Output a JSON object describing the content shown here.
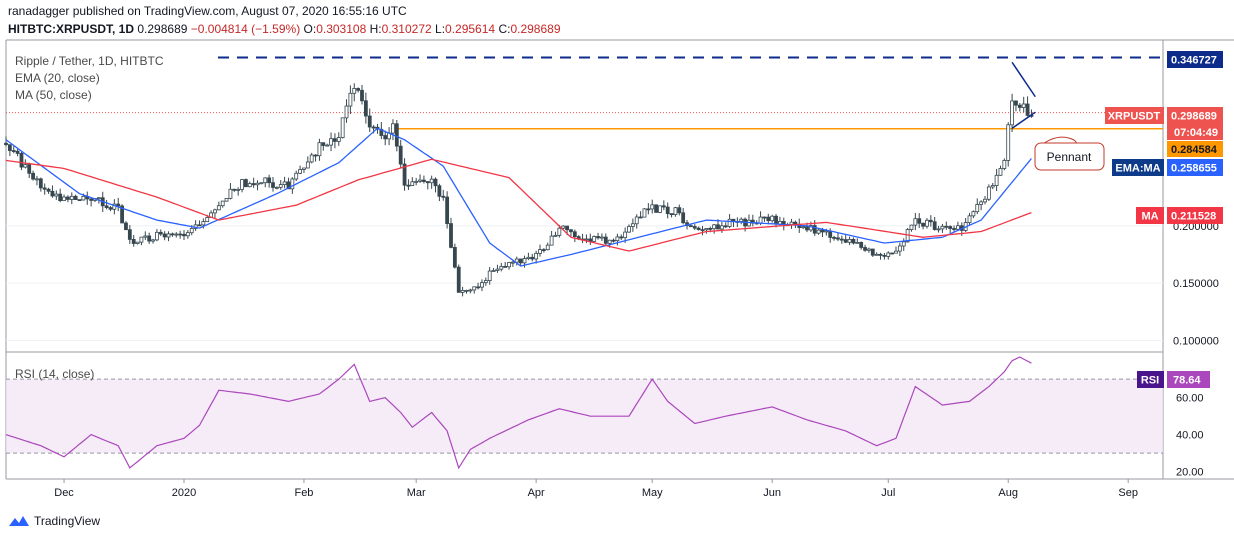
{
  "header": {
    "published_line": "ranadagger published on TradingView.com, August 07, 2020 16:55:16 UTC",
    "symbol": "HITBTC:XRPUSDT, 1D",
    "last": "0.298689",
    "change": "−0.004814 (−1.59%)",
    "o_label": "O:",
    "o": "0.303108",
    "h_label": "H:",
    "h": "0.310272",
    "l_label": "L:",
    "l": "0.295614",
    "c_label": "C:",
    "c": "0.298689"
  },
  "legend": {
    "pair": "Ripple / Tether, 1D, HITBTC",
    "ema": "EMA (20, close)",
    "ma": "MA (50, close)",
    "rsi": "RSI (14, close)"
  },
  "footer": {
    "brand": "TradingView"
  },
  "colors": {
    "up": "#26a69a",
    "down": "#ef5350",
    "candle": "#37474f",
    "ema": "#2962ff",
    "ma": "#f23645",
    "rsi": "#ab47bc",
    "resistance": "#0d2b8a",
    "support": "#ff9800",
    "pennant": "#0d2b8a",
    "accent": "#c0392b"
  },
  "chart_data": [
    {
      "type": "candlestick",
      "title": "Ripple / Tether, 1D, HITBTC",
      "y_ticks": [
        "0.100000",
        "0.150000",
        "0.200000"
      ],
      "ylim": [
        0.09,
        0.355
      ],
      "x_ticks": [
        "Dec",
        "2020",
        "Feb",
        "Mar",
        "Apr",
        "May",
        "Jun",
        "Jul",
        "Aug",
        "Sep"
      ],
      "x_tick_dates": [
        "2019-12-01",
        "2020-01-01",
        "2020-02-01",
        "2020-03-01",
        "2020-04-01",
        "2020-05-01",
        "2020-06-01",
        "2020-07-01",
        "2020-08-01",
        "2020-09-01"
      ],
      "x_range": [
        "2019-11-16",
        "2020-09-10"
      ],
      "series_close_keypoints": [
        [
          "2019-11-16",
          0.272
        ],
        [
          "2019-11-25",
          0.235
        ],
        [
          "2019-12-01",
          0.222
        ],
        [
          "2019-12-08",
          0.226
        ],
        [
          "2019-12-15",
          0.214
        ],
        [
          "2019-12-18",
          0.185
        ],
        [
          "2019-12-25",
          0.192
        ],
        [
          "2020-01-01",
          0.193
        ],
        [
          "2020-01-07",
          0.205
        ],
        [
          "2020-01-14",
          0.235
        ],
        [
          "2020-01-20",
          0.24
        ],
        [
          "2020-01-28",
          0.235
        ],
        [
          "2020-02-05",
          0.27
        ],
        [
          "2020-02-10",
          0.28
        ],
        [
          "2020-02-14",
          0.325
        ],
        [
          "2020-02-17",
          0.295
        ],
        [
          "2020-02-21",
          0.275
        ],
        [
          "2020-02-24",
          0.285
        ],
        [
          "2020-02-27",
          0.235
        ],
        [
          "2020-03-05",
          0.238
        ],
        [
          "2020-03-08",
          0.225
        ],
        [
          "2020-03-12",
          0.14
        ],
        [
          "2020-03-16",
          0.145
        ],
        [
          "2020-03-20",
          0.158
        ],
        [
          "2020-03-28",
          0.17
        ],
        [
          "2020-04-03",
          0.178
        ],
        [
          "2020-04-07",
          0.198
        ],
        [
          "2020-04-15",
          0.188
        ],
        [
          "2020-04-21",
          0.186
        ],
        [
          "2020-04-30",
          0.215
        ],
        [
          "2020-05-07",
          0.213
        ],
        [
          "2020-05-12",
          0.196
        ],
        [
          "2020-05-20",
          0.202
        ],
        [
          "2020-06-01",
          0.205
        ],
        [
          "2020-06-10",
          0.198
        ],
        [
          "2020-06-20",
          0.187
        ],
        [
          "2020-06-28",
          0.175
        ],
        [
          "2020-07-03",
          0.178
        ],
        [
          "2020-07-08",
          0.205
        ],
        [
          "2020-07-15",
          0.197
        ],
        [
          "2020-07-20",
          0.198
        ],
        [
          "2020-07-27",
          0.23
        ],
        [
          "2020-07-31",
          0.258
        ],
        [
          "2020-08-02",
          0.31
        ],
        [
          "2020-08-04",
          0.305
        ],
        [
          "2020-08-07",
          0.2987
        ]
      ],
      "ema20_keypoints": [
        [
          "2019-11-16",
          0.275
        ],
        [
          "2019-12-05",
          0.228
        ],
        [
          "2019-12-25",
          0.205
        ],
        [
          "2020-01-05",
          0.198
        ],
        [
          "2020-01-25",
          0.228
        ],
        [
          "2020-02-10",
          0.255
        ],
        [
          "2020-02-20",
          0.285
        ],
        [
          "2020-02-27",
          0.275
        ],
        [
          "2020-03-08",
          0.252
        ],
        [
          "2020-03-20",
          0.185
        ],
        [
          "2020-03-28",
          0.165
        ],
        [
          "2020-04-10",
          0.175
        ],
        [
          "2020-05-01",
          0.193
        ],
        [
          "2020-05-15",
          0.205
        ],
        [
          "2020-06-10",
          0.2
        ],
        [
          "2020-06-30",
          0.185
        ],
        [
          "2020-07-15",
          0.19
        ],
        [
          "2020-07-25",
          0.205
        ],
        [
          "2020-08-07",
          0.258655
        ]
      ],
      "ma50_keypoints": [
        [
          "2019-11-16",
          0.257
        ],
        [
          "2019-12-01",
          0.25
        ],
        [
          "2019-12-25",
          0.225
        ],
        [
          "2020-01-10",
          0.205
        ],
        [
          "2020-01-30",
          0.218
        ],
        [
          "2020-02-15",
          0.24
        ],
        [
          "2020-03-05",
          0.258
        ],
        [
          "2020-03-25",
          0.242
        ],
        [
          "2020-04-10",
          0.19
        ],
        [
          "2020-04-25",
          0.178
        ],
        [
          "2020-05-15",
          0.195
        ],
        [
          "2020-06-15",
          0.203
        ],
        [
          "2020-07-10",
          0.19
        ],
        [
          "2020-07-25",
          0.195
        ],
        [
          "2020-08-07",
          0.211528
        ]
      ],
      "levels": {
        "resistance": 0.346727,
        "support": 0.284584
      },
      "labels": {
        "price": {
          "name": "XRPUSDT",
          "value": "0.298689"
        },
        "countdown": "07:04:49",
        "support": "0.284584",
        "ema": {
          "name": "EMA:MA",
          "value": "0.258655"
        },
        "ma": {
          "name": "MA",
          "value": "0.211528"
        },
        "resistance": "0.346727"
      },
      "annotation": "Pennant"
    },
    {
      "type": "line",
      "title": "RSI (14, close)",
      "y_ticks": [
        "20.00",
        "40.00",
        "60.00"
      ],
      "ylim": [
        16,
        82
      ],
      "band": [
        30,
        70
      ],
      "rsi_keypoints": [
        [
          "2019-11-16",
          40
        ],
        [
          "2019-11-25",
          34
        ],
        [
          "2019-12-01",
          28
        ],
        [
          "2019-12-08",
          40
        ],
        [
          "2019-12-15",
          34
        ],
        [
          "2019-12-18",
          22
        ],
        [
          "2019-12-25",
          34
        ],
        [
          "2020-01-01",
          38
        ],
        [
          "2020-01-05",
          45
        ],
        [
          "2020-01-10",
          64
        ],
        [
          "2020-01-18",
          62
        ],
        [
          "2020-01-28",
          58
        ],
        [
          "2020-02-05",
          62
        ],
        [
          "2020-02-10",
          70
        ],
        [
          "2020-02-14",
          78
        ],
        [
          "2020-02-18",
          58
        ],
        [
          "2020-02-22",
          60
        ],
        [
          "2020-02-26",
          52
        ],
        [
          "2020-02-29",
          44
        ],
        [
          "2020-03-05",
          52
        ],
        [
          "2020-03-09",
          42
        ],
        [
          "2020-03-12",
          22
        ],
        [
          "2020-03-15",
          32
        ],
        [
          "2020-03-20",
          38
        ],
        [
          "2020-03-30",
          48
        ],
        [
          "2020-04-07",
          54
        ],
        [
          "2020-04-15",
          50
        ],
        [
          "2020-04-25",
          50
        ],
        [
          "2020-05-01",
          70
        ],
        [
          "2020-05-05",
          58
        ],
        [
          "2020-05-12",
          46
        ],
        [
          "2020-05-20",
          50
        ],
        [
          "2020-06-01",
          55
        ],
        [
          "2020-06-10",
          48
        ],
        [
          "2020-06-20",
          42
        ],
        [
          "2020-06-28",
          34
        ],
        [
          "2020-07-03",
          38
        ],
        [
          "2020-07-08",
          66
        ],
        [
          "2020-07-15",
          56
        ],
        [
          "2020-07-22",
          58
        ],
        [
          "2020-07-27",
          66
        ],
        [
          "2020-07-31",
          74
        ],
        [
          "2020-08-02",
          80
        ],
        [
          "2020-08-04",
          82
        ],
        [
          "2020-08-07",
          78.64
        ]
      ],
      "labels": {
        "rsi": {
          "name": "RSI",
          "value": "78.64"
        }
      }
    }
  ]
}
